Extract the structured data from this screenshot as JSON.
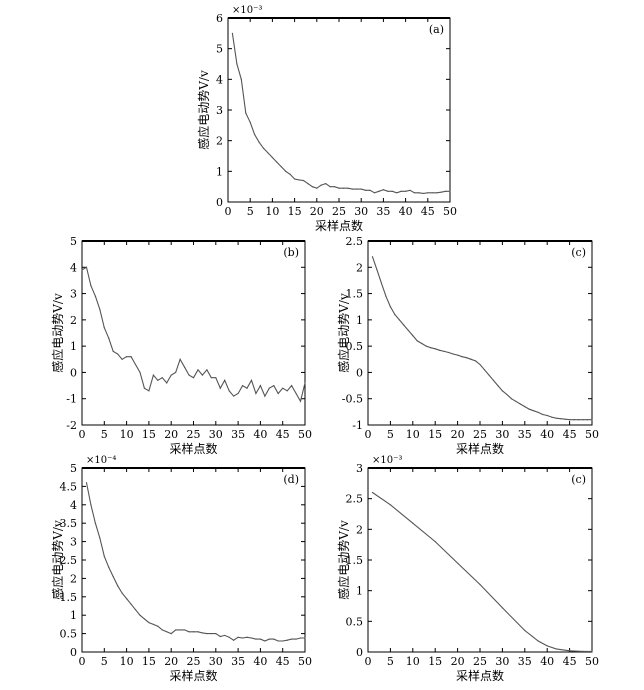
{
  "chart_data": [
    {
      "type": "line",
      "panel_label": "(a)",
      "multiplier": "×10⁻³",
      "xlabel": "采样点数",
      "ylabel": "感应电动势V/v",
      "xlim": [
        0,
        50
      ],
      "ylim": [
        0,
        6
      ],
      "xticks": [
        "0",
        "5",
        "10",
        "15",
        "20",
        "25",
        "30",
        "35",
        "40",
        "45",
        "50"
      ],
      "yticks": [
        "0",
        "1",
        "2",
        "3",
        "4",
        "5",
        "6"
      ],
      "grid": false,
      "x": [
        1,
        2,
        3,
        4,
        5,
        6,
        7,
        8,
        9,
        10,
        11,
        12,
        13,
        14,
        15,
        16,
        17,
        18,
        19,
        20,
        21,
        22,
        23,
        24,
        25,
        26,
        27,
        28,
        29,
        30,
        31,
        32,
        33,
        34,
        35,
        36,
        37,
        38,
        39,
        40,
        41,
        42,
        43,
        44,
        45,
        46,
        47,
        48,
        49,
        50
      ],
      "values": [
        5.5,
        4.5,
        4.0,
        2.9,
        2.6,
        2.2,
        1.95,
        1.75,
        1.6,
        1.45,
        1.3,
        1.15,
        1.0,
        0.9,
        0.75,
        0.72,
        0.7,
        0.6,
        0.5,
        0.45,
        0.55,
        0.6,
        0.5,
        0.5,
        0.45,
        0.45,
        0.45,
        0.42,
        0.42,
        0.42,
        0.38,
        0.38,
        0.3,
        0.35,
        0.4,
        0.35,
        0.35,
        0.3,
        0.35,
        0.35,
        0.38,
        0.3,
        0.3,
        0.28,
        0.3,
        0.3,
        0.3,
        0.32,
        0.35,
        0.35
      ]
    },
    {
      "type": "line",
      "panel_label": "(b)",
      "multiplier": "",
      "xlabel": "采样点数",
      "ylabel": "感应电动势V/v",
      "xlim": [
        0,
        50
      ],
      "ylim": [
        -2,
        5
      ],
      "xticks": [
        "0",
        "5",
        "10",
        "15",
        "20",
        "25",
        "30",
        "35",
        "40",
        "45",
        "50"
      ],
      "yticks": [
        "-2",
        "-1",
        "0",
        "1",
        "2",
        "3",
        "4",
        "5"
      ],
      "grid": false,
      "x": [
        0,
        1,
        2,
        3,
        4,
        5,
        6,
        7,
        8,
        9,
        10,
        11,
        12,
        13,
        14,
        15,
        16,
        17,
        18,
        19,
        20,
        21,
        22,
        23,
        24,
        25,
        26,
        27,
        28,
        29,
        30,
        31,
        32,
        33,
        34,
        35,
        36,
        37,
        38,
        39,
        40,
        41,
        42,
        43,
        44,
        45,
        46,
        47,
        48,
        49,
        50
      ],
      "values": [
        3.9,
        4.0,
        3.3,
        2.9,
        2.4,
        1.7,
        1.3,
        0.8,
        0.7,
        0.5,
        0.6,
        0.6,
        0.3,
        0.0,
        -0.6,
        -0.7,
        -0.1,
        -0.3,
        -0.2,
        -0.4,
        -0.1,
        0.0,
        0.5,
        0.2,
        -0.1,
        -0.2,
        0.1,
        -0.1,
        0.1,
        -0.2,
        -0.2,
        -0.6,
        -0.3,
        -0.7,
        -0.9,
        -0.8,
        -0.5,
        -0.6,
        -0.3,
        -0.8,
        -0.5,
        -0.9,
        -0.6,
        -0.5,
        -0.8,
        -0.6,
        -0.7,
        -0.5,
        -0.8,
        -1.1,
        -0.4
      ]
    },
    {
      "type": "line",
      "panel_label": "(c)",
      "multiplier": "",
      "xlabel": "采样点数",
      "ylabel": "感应电动势V/v",
      "xlim": [
        0,
        50
      ],
      "ylim": [
        -1,
        2.5
      ],
      "xticks": [
        "0",
        "5",
        "10",
        "15",
        "20",
        "25",
        "30",
        "35",
        "40",
        "45",
        "50"
      ],
      "yticks": [
        "-1",
        "-0.5",
        "0",
        "0.5",
        "1",
        "1.5",
        "2",
        "2.5"
      ],
      "grid": false,
      "x": [
        1,
        2,
        3,
        4,
        5,
        6,
        7,
        8,
        9,
        10,
        11,
        12,
        13,
        14,
        15,
        16,
        17,
        18,
        19,
        20,
        21,
        22,
        23,
        24,
        25,
        26,
        27,
        28,
        29,
        30,
        31,
        32,
        33,
        34,
        35,
        36,
        37,
        38,
        39,
        40,
        41,
        42,
        43,
        44,
        45,
        46,
        47,
        48,
        49,
        50
      ],
      "values": [
        2.2,
        1.95,
        1.7,
        1.45,
        1.25,
        1.1,
        1.0,
        0.9,
        0.8,
        0.7,
        0.6,
        0.55,
        0.5,
        0.47,
        0.45,
        0.42,
        0.4,
        0.38,
        0.35,
        0.33,
        0.3,
        0.28,
        0.25,
        0.22,
        0.15,
        0.05,
        -0.05,
        -0.15,
        -0.25,
        -0.35,
        -0.42,
        -0.5,
        -0.55,
        -0.6,
        -0.65,
        -0.7,
        -0.73,
        -0.76,
        -0.8,
        -0.82,
        -0.85,
        -0.87,
        -0.88,
        -0.89,
        -0.9,
        -0.9,
        -0.9,
        -0.9,
        -0.9,
        -0.9
      ]
    },
    {
      "type": "line",
      "panel_label": "(d)",
      "multiplier": "×10⁻⁴",
      "xlabel": "采样点数",
      "ylabel": "感应电动势V/v",
      "xlim": [
        0,
        50
      ],
      "ylim": [
        0,
        5
      ],
      "xticks": [
        "0",
        "5",
        "10",
        "15",
        "20",
        "25",
        "30",
        "35",
        "40",
        "45",
        "50"
      ],
      "yticks": [
        "0",
        "0.5",
        "1",
        "1.5",
        "2",
        "2.5",
        "3",
        "3.5",
        "4",
        "4.5",
        "5"
      ],
      "grid": false,
      "x": [
        1,
        2,
        3,
        4,
        5,
        6,
        7,
        8,
        9,
        10,
        11,
        12,
        13,
        14,
        15,
        16,
        17,
        18,
        19,
        20,
        21,
        22,
        23,
        24,
        25,
        26,
        27,
        28,
        29,
        30,
        31,
        32,
        33,
        34,
        35,
        36,
        37,
        38,
        39,
        40,
        41,
        42,
        43,
        44,
        45,
        46,
        47,
        48,
        49,
        50
      ],
      "values": [
        4.6,
        4.0,
        3.5,
        3.1,
        2.6,
        2.3,
        2.05,
        1.8,
        1.6,
        1.45,
        1.3,
        1.15,
        1.0,
        0.9,
        0.8,
        0.75,
        0.7,
        0.6,
        0.55,
        0.5,
        0.6,
        0.6,
        0.6,
        0.55,
        0.55,
        0.55,
        0.52,
        0.5,
        0.5,
        0.5,
        0.42,
        0.45,
        0.4,
        0.32,
        0.4,
        0.38,
        0.4,
        0.38,
        0.35,
        0.35,
        0.3,
        0.35,
        0.35,
        0.3,
        0.3,
        0.32,
        0.35,
        0.35,
        0.38,
        0.38
      ]
    },
    {
      "type": "line",
      "panel_label": "(c)",
      "multiplier": "×10⁻³",
      "xlabel": "采样点数",
      "ylabel": "感应电动势V/v",
      "xlim": [
        0,
        50
      ],
      "ylim": [
        0,
        3
      ],
      "xticks": [
        "0",
        "5",
        "10",
        "15",
        "20",
        "25",
        "30",
        "35",
        "40",
        "45",
        "50"
      ],
      "yticks": [
        "0",
        "0.5",
        "1",
        "1.5",
        "2",
        "2.5",
        "3"
      ],
      "grid": false,
      "x": [
        1,
        5,
        10,
        15,
        20,
        25,
        30,
        35,
        38,
        40,
        42,
        45,
        48,
        50
      ],
      "values": [
        2.6,
        2.4,
        2.1,
        1.8,
        1.45,
        1.1,
        0.72,
        0.35,
        0.18,
        0.1,
        0.05,
        0.02,
        0.01,
        0.01
      ]
    }
  ]
}
